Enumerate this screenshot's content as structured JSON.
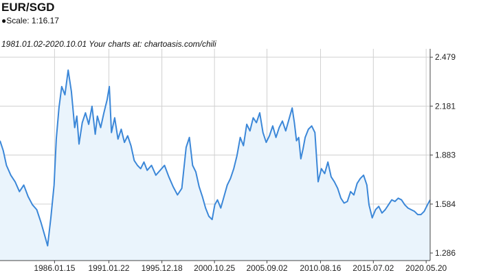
{
  "header": {
    "title": "EUR/SGD",
    "scale": "●Scale: 1:16.17",
    "subtitle": "1981.01.02-2020.10.01 Your charts at: chartoasis.com/chili"
  },
  "colors": {
    "line": "#3b87d8",
    "fill": "#eaf4fc",
    "grid": "#d0d0d0",
    "axis": "#444444"
  },
  "chart_data": {
    "type": "area",
    "title": "EUR/SGD",
    "subtitle": "1981.01.02-2020.10.01 Your charts at: chartoasis.com/chili",
    "xlabel": "",
    "ylabel": "",
    "xlim": [
      1981.0,
      2020.75
    ],
    "ylim": [
      1.24,
      2.53
    ],
    "x_ticks": [
      {
        "label": "1986.01.15",
        "x": 1986.04
      },
      {
        "label": "1991.01.22",
        "x": 1991.06
      },
      {
        "label": "1995.12.18",
        "x": 1995.96
      },
      {
        "label": "2000.10.25",
        "x": 2000.82
      },
      {
        "label": "2005.09.02",
        "x": 2005.67
      },
      {
        "label": "2010.08.16",
        "x": 2010.62
      },
      {
        "label": "2015.07.02",
        "x": 2015.5
      },
      {
        "label": "2020.05.20",
        "x": 2020.38
      }
    ],
    "y_ticks": [
      {
        "label": "1.286",
        "y": 1.286
      },
      {
        "label": "1.584",
        "y": 1.584
      },
      {
        "label": "1.883",
        "y": 1.883
      },
      {
        "label": "2.181",
        "y": 2.181
      },
      {
        "label": "2.479",
        "y": 2.479
      }
    ],
    "grid": true,
    "series": [
      {
        "x": [
          1981.0,
          1981.3,
          1981.6,
          1982.0,
          1982.4,
          1982.8,
          1983.2,
          1983.6,
          1984.0,
          1984.4,
          1984.8,
          1985.1,
          1985.4,
          1985.7,
          1986.0,
          1986.2,
          1986.45,
          1986.7,
          1987.0,
          1987.3,
          1987.6,
          1987.9,
          1988.1,
          1988.3,
          1988.6,
          1988.9,
          1989.2,
          1989.5,
          1989.8,
          1990.0,
          1990.3,
          1990.6,
          1990.9,
          1991.1,
          1991.3,
          1991.6,
          1991.9,
          1992.2,
          1992.5,
          1992.8,
          1993.1,
          1993.4,
          1993.7,
          1994.0,
          1994.3,
          1994.6,
          1995.0,
          1995.4,
          1995.8,
          1996.2,
          1996.6,
          1997.0,
          1997.4,
          1997.8,
          1998.2,
          1998.5,
          1998.8,
          1999.1,
          1999.4,
          1999.7,
          2000.0,
          2000.3,
          2000.6,
          2000.85,
          2001.1,
          2001.4,
          2001.7,
          2002.0,
          2002.3,
          2002.6,
          2002.9,
          2003.2,
          2003.5,
          2003.8,
          2004.1,
          2004.4,
          2004.7,
          2005.0,
          2005.3,
          2005.6,
          2005.9,
          2006.2,
          2006.5,
          2006.8,
          2007.1,
          2007.4,
          2007.7,
          2008.0,
          2008.2,
          2008.4,
          2008.6,
          2008.8,
          2009.0,
          2009.2,
          2009.5,
          2009.8,
          2010.1,
          2010.4,
          2010.7,
          2011.0,
          2011.3,
          2011.6,
          2011.9,
          2012.2,
          2012.5,
          2012.8,
          2013.1,
          2013.4,
          2013.7,
          2014.0,
          2014.3,
          2014.6,
          2014.9,
          2015.1,
          2015.4,
          2015.7,
          2016.0,
          2016.3,
          2016.6,
          2016.9,
          2017.2,
          2017.5,
          2017.8,
          2018.1,
          2018.4,
          2018.7,
          2019.0,
          2019.3,
          2019.6,
          2019.9,
          2020.2,
          2020.5,
          2020.75
        ],
        "y": [
          1.97,
          1.91,
          1.82,
          1.76,
          1.72,
          1.66,
          1.7,
          1.63,
          1.58,
          1.55,
          1.47,
          1.4,
          1.33,
          1.5,
          1.7,
          1.98,
          2.17,
          2.3,
          2.25,
          2.4,
          2.27,
          2.05,
          2.12,
          1.95,
          2.08,
          2.14,
          2.07,
          2.18,
          2.01,
          2.12,
          2.05,
          2.14,
          2.22,
          2.3,
          2.02,
          2.11,
          1.98,
          2.04,
          1.96,
          2.0,
          1.94,
          1.85,
          1.82,
          1.8,
          1.84,
          1.79,
          1.82,
          1.76,
          1.79,
          1.82,
          1.75,
          1.69,
          1.64,
          1.68,
          1.93,
          1.99,
          1.82,
          1.78,
          1.69,
          1.63,
          1.56,
          1.51,
          1.49,
          1.58,
          1.61,
          1.56,
          1.63,
          1.7,
          1.74,
          1.8,
          1.88,
          1.99,
          1.94,
          2.07,
          2.03,
          2.11,
          2.08,
          2.14,
          2.02,
          1.96,
          2.0,
          2.06,
          1.99,
          2.05,
          2.09,
          2.03,
          2.1,
          2.17,
          2.08,
          1.97,
          1.99,
          1.86,
          1.92,
          1.99,
          2.04,
          2.06,
          2.02,
          1.72,
          1.8,
          1.77,
          1.84,
          1.75,
          1.72,
          1.68,
          1.62,
          1.59,
          1.6,
          1.66,
          1.64,
          1.71,
          1.74,
          1.76,
          1.7,
          1.58,
          1.5,
          1.55,
          1.57,
          1.53,
          1.55,
          1.58,
          1.61,
          1.6,
          1.62,
          1.61,
          1.58,
          1.56,
          1.55,
          1.54,
          1.52,
          1.52,
          1.54,
          1.58,
          1.61
        ]
      }
    ]
  }
}
